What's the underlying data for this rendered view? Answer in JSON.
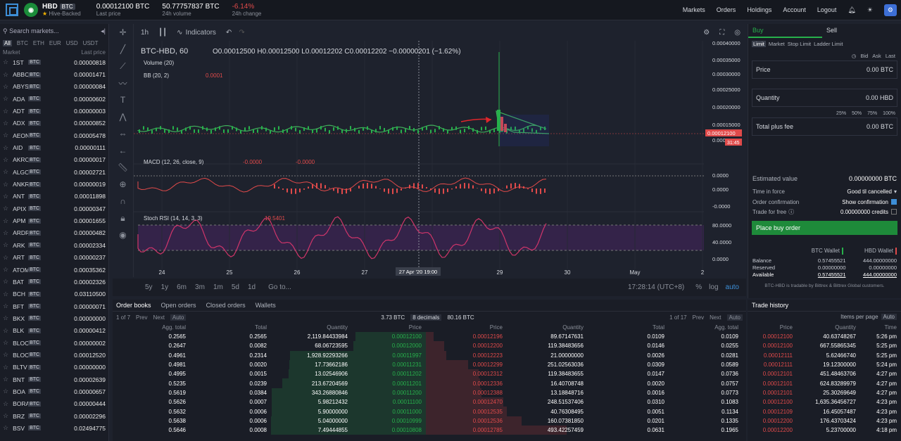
{
  "header": {
    "market": "HBD",
    "quote": "BTC",
    "hive_backed": "Hive-Backed",
    "last_price": "0.00012100 BTC",
    "last_price_label": "Last price",
    "volume": "50.77757837 BTC",
    "volume_label": "24h volume",
    "change": "-6.14%",
    "change_label": "24h change"
  },
  "nav": [
    "Markets",
    "Orders",
    "Holdings",
    "Account",
    "Logout"
  ],
  "sidebar": {
    "search_placeholder": "Search markets...",
    "tabs": [
      "All",
      "BTC",
      "ETH",
      "EUR",
      "USD",
      "USDT"
    ],
    "col_market": "Market",
    "col_price": "Last price",
    "markets": [
      [
        "1ST",
        "0.00000818"
      ],
      [
        "ABBC",
        "0.00001471"
      ],
      [
        "ABYSS",
        "0.00000084"
      ],
      [
        "ADA",
        "0.00000602"
      ],
      [
        "ADT",
        "0.00000003"
      ],
      [
        "ADX",
        "0.00000852"
      ],
      [
        "AEON",
        "0.00005478"
      ],
      [
        "AID",
        "0.00000111"
      ],
      [
        "AKRO",
        "0.00000017"
      ],
      [
        "ALGO",
        "0.00002721"
      ],
      [
        "ANKR",
        "0.00000019"
      ],
      [
        "ANT",
        "0.00011898"
      ],
      [
        "APIX",
        "0.00000347"
      ],
      [
        "APM",
        "0.00001655"
      ],
      [
        "ARDR",
        "0.00000482"
      ],
      [
        "ARK",
        "0.00002334"
      ],
      [
        "ART",
        "0.00000237"
      ],
      [
        "ATOM",
        "0.00035362"
      ],
      [
        "BAT",
        "0.00002326"
      ],
      [
        "BCH",
        "0.03110500"
      ],
      [
        "BFT",
        "0.00000071"
      ],
      [
        "BKX",
        "0.00000000"
      ],
      [
        "BLK",
        "0.00000412"
      ],
      [
        "BLOC",
        "0.00000002"
      ],
      [
        "BLOCK",
        "0.00012520"
      ],
      [
        "BLTV",
        "0.00000000"
      ],
      [
        "BNT",
        "0.00002639"
      ],
      [
        "BOA",
        "0.00000657"
      ],
      [
        "BORA",
        "0.00000444"
      ],
      [
        "BRZ",
        "0.00002296"
      ],
      [
        "BSV",
        "0.02494775"
      ]
    ]
  },
  "chart": {
    "interval": "1h",
    "indicators_label": "Indicators",
    "symbol": "BTC-HBD, 60",
    "ohlc": "O0.00012500 H0.00012500 L0.00012202 C0.00012202 −0.00000201 (−1.62%)",
    "volume_label": "Volume (20)",
    "bb_label": "BB (20, 2)",
    "bb_val": "0.0001",
    "macd_label": "MACD (12, 26, close, 9)",
    "macd_val": "-0.0000",
    "rsi_label": "Stoch RSI (14, 14, 3, 3)",
    "rsi_val": "19.5401",
    "yticks": [
      "0.00040000",
      "0.00035000",
      "0.00030000",
      "0.00025000",
      "0.00020000",
      "0.00015000",
      "0.00010000"
    ],
    "price_tag": "0.00012100",
    "time_tag": "31:45",
    "macd_ticks": [
      "0.0000",
      "0.0000",
      "-0.0000"
    ],
    "rsi_ticks": [
      "80.0000",
      "40.0000",
      "0.0000"
    ],
    "xticks": [
      "24",
      "25",
      "26",
      "27",
      "28",
      "29",
      "30",
      "May",
      "2"
    ],
    "cursor_label": "27 Apr '20   19:00",
    "ranges": [
      "5y",
      "1y",
      "6m",
      "3m",
      "1m",
      "5d",
      "1d"
    ],
    "goto": "Go to...",
    "clock": "17:28:14 (UTC+8)",
    "pct": "%",
    "log": "log",
    "auto": "auto"
  },
  "orderbook": {
    "tabs": [
      "Order books",
      "Open orders",
      "Closed orders",
      "Wallets"
    ],
    "page_left": "1 of 7",
    "page_right": "1 of 17",
    "prev": "Prev",
    "next": "Next",
    "auto": "Auto",
    "sum_btc": "3.73 BTC",
    "decimals": "8 decimals",
    "sum_btc2": "80.16 BTC",
    "cols_bid": [
      "Agg. total",
      "Total",
      "Quantity",
      "Price"
    ],
    "cols_ask": [
      "Price",
      "Quantity",
      "Total",
      "Agg. total"
    ],
    "bids": [
      [
        "0.2565",
        "0.2565",
        "2,119.84433984",
        "0.00012100"
      ],
      [
        "0.2647",
        "0.0082",
        "68.06723595",
        "0.00012000"
      ],
      [
        "0.4961",
        "0.2314",
        "1,928.92293266",
        "0.00011997"
      ],
      [
        "0.4981",
        "0.0020",
        "17.73662186",
        "0.00011231"
      ],
      [
        "0.4995",
        "0.0015",
        "13.02546906",
        "0.00011202"
      ],
      [
        "0.5235",
        "0.0239",
        "213.67204569",
        "0.00011201"
      ],
      [
        "0.5619",
        "0.0384",
        "343.26880846",
        "0.00011200"
      ],
      [
        "0.5626",
        "0.0007",
        "5.98212432",
        "0.00011100"
      ],
      [
        "0.5632",
        "0.0006",
        "5.90000000",
        "0.00011000"
      ],
      [
        "0.5638",
        "0.0006",
        "5.04000000",
        "0.00010999"
      ],
      [
        "0.5646",
        "0.0008",
        "7.49444855",
        "0.00010808"
      ]
    ],
    "asks": [
      [
        "0.00012196",
        "89.67147631",
        "0.0109",
        "0.0109"
      ],
      [
        "0.00012200",
        "119.38483656",
        "0.0146",
        "0.0255"
      ],
      [
        "0.00012223",
        "21.00000000",
        "0.0026",
        "0.0281"
      ],
      [
        "0.00012299",
        "251.02563036",
        "0.0309",
        "0.0589"
      ],
      [
        "0.00012312",
        "119.38483655",
        "0.0147",
        "0.0736"
      ],
      [
        "0.00012336",
        "16.40708748",
        "0.0020",
        "0.0757"
      ],
      [
        "0.00012388",
        "13.18848716",
        "0.0016",
        "0.0773"
      ],
      [
        "0.00012470",
        "248.51537406",
        "0.0310",
        "0.1083"
      ],
      [
        "0.00012535",
        "40.76308495",
        "0.0051",
        "0.1134"
      ],
      [
        "0.00012536",
        "160.07381850",
        "0.0201",
        "0.1335"
      ],
      [
        "0.00012785",
        "493.42257459",
        "0.0631",
        "0.1965"
      ]
    ]
  },
  "buy": {
    "tab_buy": "Buy",
    "tab_sell": "Sell",
    "types": [
      "Limit",
      "Market",
      "Stop Limit",
      "Ladder Limit"
    ],
    "bid": "Bid",
    "ask": "Ask",
    "last": "Last",
    "price_label": "Price",
    "price_val": "0.00",
    "price_unit": "BTC",
    "qty_label": "Quantity",
    "qty_val": "0.00",
    "qty_unit": "HBD",
    "pcts": [
      "25%",
      "50%",
      "75%",
      "100%"
    ],
    "total_label": "Total plus fee",
    "total_val": "0.00",
    "total_unit": "BTC",
    "est_label": "Estimated value",
    "est_val": "0.00000000 BTC",
    "tif_label": "Time in force",
    "tif_val": "Good til cancelled",
    "conf_label": "Order confirmation",
    "conf_val": "Show confirmation",
    "free_label": "Trade for free",
    "free_val": "0.00000000 credits",
    "place": "Place buy order",
    "btc_wallet": "BTC Wallet",
    "hbd_wallet": "HBD Wallet",
    "balance_label": "Balance",
    "reserved_label": "Reserved",
    "available_label": "Available",
    "btc_bal": "0.57455521",
    "btc_res": "0.00000000",
    "btc_av": "0.57455521",
    "hbd_bal": "444.00000000",
    "hbd_res": "0.00000000",
    "hbd_av": "444.00000000",
    "note": "BTC-HBD is tradable by Bittrex & Bittrex Global customers."
  },
  "trades": {
    "title": "Trade history",
    "ipp": "Items per page",
    "auto": "Auto",
    "cols": [
      "Price",
      "Quantity",
      "Time"
    ],
    "rows": [
      [
        "0.00012100",
        "40.63748267",
        "5:26 pm"
      ],
      [
        "0.00012100",
        "667.55865345",
        "5:25 pm"
      ],
      [
        "0.00012111",
        "5.62466740",
        "5:25 pm"
      ],
      [
        "0.00012111",
        "19.12300000",
        "5:24 pm"
      ],
      [
        "0.00012101",
        "451.48463706",
        "4:27 pm"
      ],
      [
        "0.00012101",
        "624.83289979",
        "4:27 pm"
      ],
      [
        "0.00012101",
        "25.30269649",
        "4:27 pm"
      ],
      [
        "0.00012100",
        "1,635.36456727",
        "4:23 pm"
      ],
      [
        "0.00012109",
        "16.45057487",
        "4:23 pm"
      ],
      [
        "0.00012200",
        "176.43703424",
        "4:23 pm"
      ],
      [
        "0.00012200",
        "5.23700000",
        "4:18 pm"
      ]
    ]
  },
  "colors": {
    "up": "#27b04b",
    "down": "#e04a4a",
    "accent": "#3d8ed6"
  }
}
